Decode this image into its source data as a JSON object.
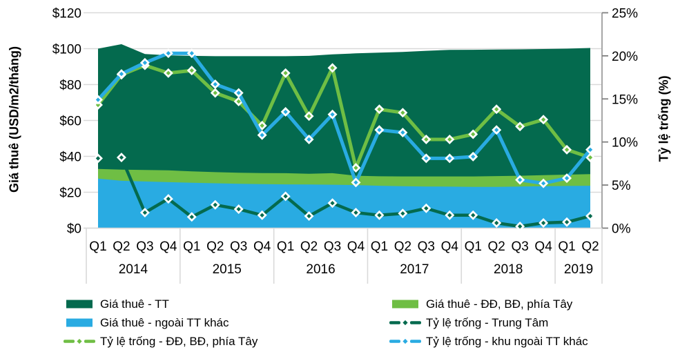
{
  "chart_data": {
    "type": "combo",
    "subtype": "overlapping-areas-plus-lines",
    "title": "",
    "left_axis": {
      "label": "Giá thuê (USD/m2/tháng)",
      "min": 0,
      "max": 120,
      "step": 20,
      "ticks": [
        "$0",
        "$20",
        "$40",
        "$60",
        "$80",
        "$100",
        "$120"
      ]
    },
    "right_axis": {
      "label": "Tỷ lệ trống (%)",
      "min": 0,
      "max": 25,
      "step": 5,
      "ticks": [
        "0%",
        "5%",
        "10%",
        "15%",
        "20%",
        "25%"
      ]
    },
    "x": {
      "years": [
        {
          "label": "2014",
          "quarters": [
            "Q1",
            "Q2",
            "Q3",
            "Q4"
          ]
        },
        {
          "label": "2015",
          "quarters": [
            "Q1",
            "Q2",
            "Q3",
            "Q4"
          ]
        },
        {
          "label": "2016",
          "quarters": [
            "Q1",
            "Q2",
            "Q3",
            "Q4"
          ]
        },
        {
          "label": "2017",
          "quarters": [
            "Q1",
            "Q2",
            "Q3",
            "Q4"
          ]
        },
        {
          "label": "2018",
          "quarters": [
            "Q1",
            "Q2",
            "Q3",
            "Q4"
          ]
        },
        {
          "label": "2019",
          "quarters": [
            "Q1",
            "Q2"
          ]
        }
      ]
    },
    "grid": "horizontal",
    "legend_position": "bottom-two-columns",
    "colors": {
      "dark_green": "#046A4E",
      "light_green": "#6FBE44",
      "cyan": "#29ABE2",
      "gridline": "#D9D9D9",
      "axis_line": "#A6A6A6",
      "tick": "#7F7F7F",
      "text": "#000000"
    },
    "series": [
      {
        "name": "Giá thuê - TT",
        "type": "area",
        "axis": "left",
        "color": "#046A4E",
        "values": [
          100,
          102.5,
          97,
          96.3,
          96,
          95.8,
          95.8,
          95.8,
          95.8,
          96,
          96.8,
          97.4,
          97.8,
          98.2,
          98.8,
          99.3,
          99.4,
          99.5,
          99.6,
          99.8,
          100,
          100.4
        ]
      },
      {
        "name": "Giá thuê - ĐĐ, BĐ, phía Tây",
        "type": "area",
        "axis": "left",
        "color": "#6FBE44",
        "values": [
          33,
          32.6,
          32.4,
          32.2,
          31.6,
          31.2,
          30.9,
          30.7,
          30.6,
          30.3,
          30.6,
          29.2,
          28.9,
          28.8,
          28.8,
          28.8,
          28.8,
          29,
          29.2,
          29.5,
          29.8,
          30.1
        ]
      },
      {
        "name": "Giá thuê - ngoài TT khác",
        "type": "area",
        "axis": "left",
        "color": "#29ABE2",
        "values": [
          27.6,
          26.4,
          26,
          25.6,
          25.3,
          25,
          24.7,
          24.5,
          24.4,
          24.3,
          24.2,
          24,
          23.6,
          23.4,
          23.2,
          23.1,
          23,
          23,
          23.2,
          23.4,
          23.5,
          23.6
        ]
      },
      {
        "name": "Tỷ lệ trống - Trung Tâm",
        "type": "line",
        "axis": "right",
        "color": "#046A4E",
        "values": [
          8.1,
          8.2,
          1.8,
          3.4,
          1.3,
          2.7,
          2.2,
          1.5,
          3.7,
          1.4,
          2.9,
          1.8,
          1.5,
          1.7,
          2.3,
          1.5,
          1.5,
          0.6,
          0.2,
          0.6,
          0.7,
          1.4
        ]
      },
      {
        "name": "Tỷ lệ trống - ĐĐ, BĐ, phía Tây",
        "type": "line",
        "axis": "right",
        "color": "#6FBE44",
        "values": [
          14.3,
          17.8,
          18.9,
          18.0,
          18.3,
          15.7,
          14.7,
          11.9,
          18.0,
          13.0,
          18.6,
          7.0,
          13.8,
          13.4,
          10.3,
          10.3,
          10.9,
          13.8,
          11.8,
          12.6,
          9.1,
          8.2
        ]
      },
      {
        "name": "Tỷ lệ trống - khu ngoài TT khác",
        "type": "line",
        "axis": "right",
        "color": "#29ABE2",
        "values": [
          14.9,
          17.9,
          19.2,
          20.3,
          20.3,
          16.7,
          15.7,
          10.8,
          13.5,
          10.3,
          13.2,
          5.3,
          11.4,
          11.1,
          8.1,
          8.1,
          8.3,
          11.4,
          5.6,
          5.2,
          5.8,
          9.1
        ]
      }
    ]
  }
}
